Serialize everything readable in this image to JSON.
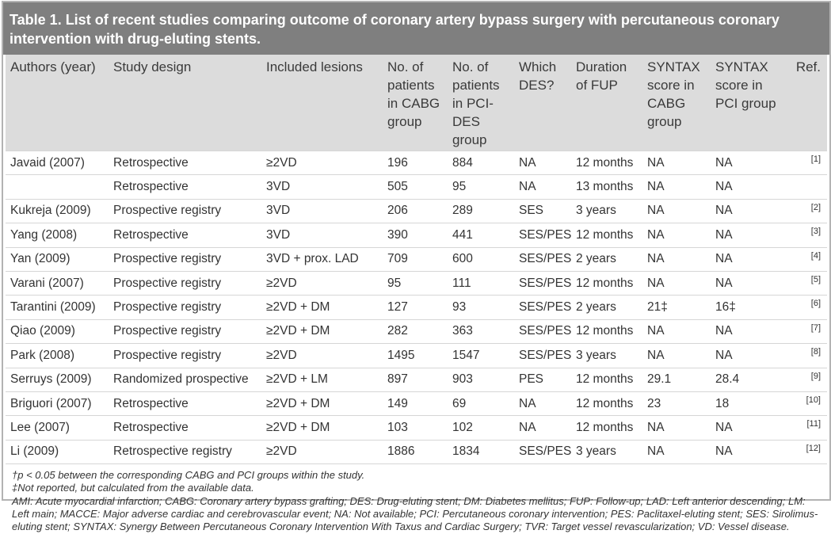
{
  "table": {
    "title": "Table 1. List of recent studies comparing outcome of coronary artery bypass surgery with percutaneous coronary intervention with drug-eluting stents.",
    "headers": [
      "Authors (year)",
      "Study design",
      "Included lesions",
      "No. of patients in CABG group",
      "No. of patients in PCI-DES group",
      "Which DES?",
      "Duration of FUP",
      "SYNTAX score in CABG group",
      "SYNTAX score in PCI group",
      "Ref."
    ],
    "rows": [
      [
        "Javaid (2007)",
        "Retrospective",
        "≥2VD",
        "196",
        "884",
        "NA",
        "12 months",
        "NA",
        "NA",
        "[1]"
      ],
      [
        "",
        "Retrospective",
        "3VD",
        "505",
        "95",
        "NA",
        "13 months",
        "NA",
        "NA",
        ""
      ],
      [
        "Kukreja (2009)",
        "Prospective registry",
        "3VD",
        "206",
        "289",
        "SES",
        "3 years",
        "NA",
        "NA",
        "[2]"
      ],
      [
        "Yang (2008)",
        "Retrospective",
        "3VD",
        "390",
        "441",
        "SES/PES",
        "12 months",
        "NA",
        "NA",
        "[3]"
      ],
      [
        "Yan (2009)",
        "Prospective registry",
        "3VD + prox. LAD",
        "709",
        "600",
        "SES/PES",
        "2 years",
        "NA",
        "NA",
        "[4]"
      ],
      [
        "Varani (2007)",
        "Prospective registry",
        "≥2VD",
        "95",
        "111",
        "SES/PES",
        "12 months",
        "NA",
        "NA",
        "[5]"
      ],
      [
        "Tarantini (2009)",
        "Prospective registry",
        "≥2VD + DM",
        "127",
        "93",
        "SES/PES",
        "2 years",
        "21‡",
        "16‡",
        "[6]"
      ],
      [
        "Qiao (2009)",
        "Prospective registry",
        "≥2VD + DM",
        "282",
        "363",
        "SES/PES",
        "12 months",
        "NA",
        "NA",
        "[7]"
      ],
      [
        "Park (2008)",
        "Prospective registry",
        "≥2VD",
        "1495",
        "1547",
        "SES/PES",
        "3 years",
        "NA",
        "NA",
        "[8]"
      ],
      [
        "Serruys (2009)",
        "Randomized prospective",
        "≥2VD + LM",
        "897",
        "903",
        "PES",
        "12 months",
        "29.1",
        "28.4",
        "[9]"
      ],
      [
        "Briguori (2007)",
        "Retrospective",
        "≥2VD +  DM",
        "149",
        "69",
        "NA",
        "12 months",
        "23",
        "18",
        "[10]"
      ],
      [
        "Lee (2007)",
        "Retrospective",
        "≥2VD + DM",
        "103",
        "102",
        "NA",
        "12 months",
        "NA",
        "NA",
        "[11]"
      ],
      [
        "Li (2009)",
        "Retrospective registry",
        "≥2VD",
        "1886",
        "1834",
        "SES/PES",
        "3 years",
        "NA",
        "NA",
        "[12]"
      ]
    ],
    "footnotes": [
      "†p < 0.05 between the corresponding CABG and PCI groups within the study.",
      "‡Not reported, but calculated from the available data.",
      "AMI: Acute myocardial infarction; CABG: Coronary artery bypass grafting; DES: Drug-eluting stent; DM: Diabetes mellitus; FUP: Follow-up; LAD: Left anterior descending; LM: Left main; MACCE: Major adverse cardiac and cerebrovascular event; NA: Not available; PCI: Percutaneous coronary intervention; PES: Paclitaxel-eluting stent; SES: Sirolimus-eluting stent; SYNTAX: Synergy Between Percutaneous Coronary Intervention With Taxus and Cardiac Surgery; TVR: Target vessel revascularization; VD: Vessel disease."
    ]
  }
}
